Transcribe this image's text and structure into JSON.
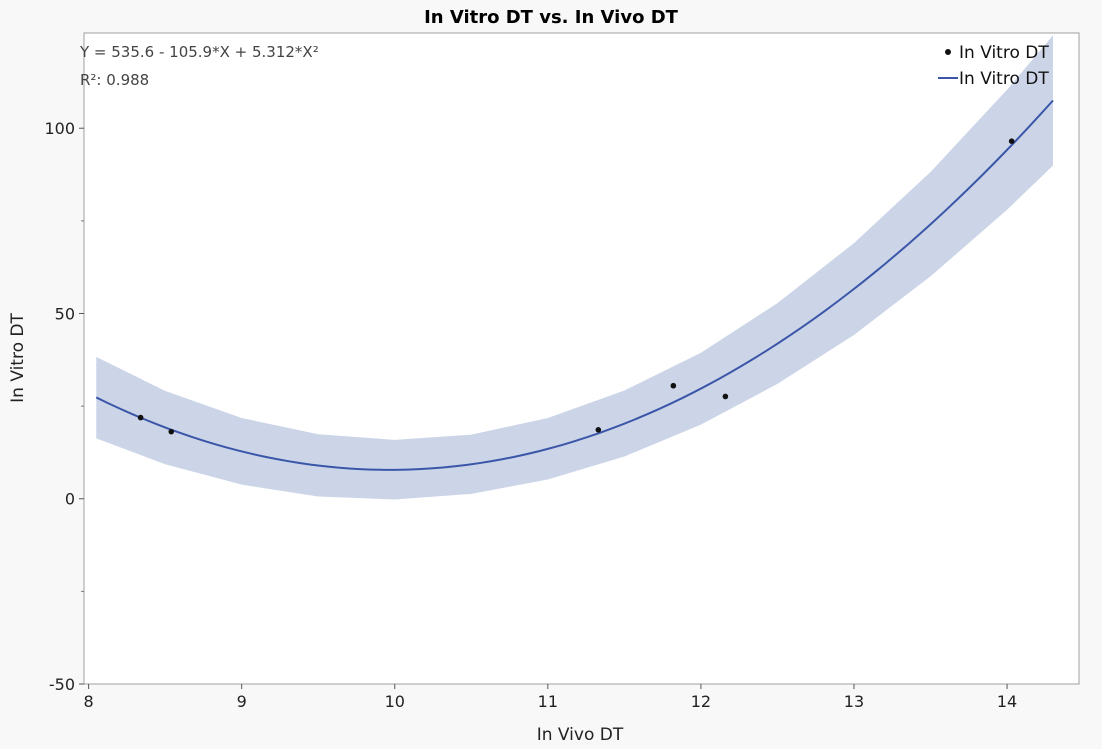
{
  "chart_data": {
    "type": "scatter",
    "title": "In Vitro DT vs. In Vivo DT",
    "xlabel": "In Vivo DT",
    "ylabel": "In Vitro DT",
    "xlim": [
      7.97,
      14.47
    ],
    "ylim": [
      -50,
      125.7
    ],
    "xticks": [
      8,
      9,
      10,
      11,
      12,
      13,
      14
    ],
    "yticks": [
      -50,
      0,
      50,
      100
    ],
    "yminor_ticks": [
      -25,
      25,
      75
    ],
    "grid": false,
    "legend_position": "top-right",
    "legend": [
      {
        "label": "In Vitro DT",
        "kind": "point"
      },
      {
        "label": "In Vitro DT",
        "kind": "line"
      }
    ],
    "annotations": [
      "Y = 535.6 - 105.9*X + 5.312*X²",
      "R²: 0.988"
    ],
    "points": {
      "x": [
        8.34,
        8.54,
        11.33,
        11.82,
        12.16,
        14.03
      ],
      "y": [
        21.9,
        18.1,
        18.6,
        30.5,
        27.6,
        96.5
      ]
    },
    "fit": {
      "coefficients": [
        535.6,
        -105.9,
        5.312
      ],
      "x_range": [
        8.05,
        14.3
      ]
    },
    "confidence_band": {
      "x": [
        8.05,
        8.5,
        9,
        9.5,
        10,
        10.5,
        11,
        11.5,
        12,
        12.5,
        13,
        13.5,
        14,
        14.3
      ],
      "lower": [
        16.3,
        9.3,
        3.8,
        0.6,
        -0.2,
        1.3,
        5.2,
        11.4,
        20.0,
        31.0,
        44.2,
        60.0,
        78.0,
        89.9
      ],
      "upper": [
        38.3,
        29.1,
        21.8,
        17.4,
        15.9,
        17.3,
        21.8,
        29.2,
        39.4,
        52.8,
        69.0,
        88.2,
        110.4,
        125.1
      ]
    },
    "colors": {
      "line": "#3b56a8",
      "band": "#ccd5e8",
      "points": "#111111"
    }
  }
}
